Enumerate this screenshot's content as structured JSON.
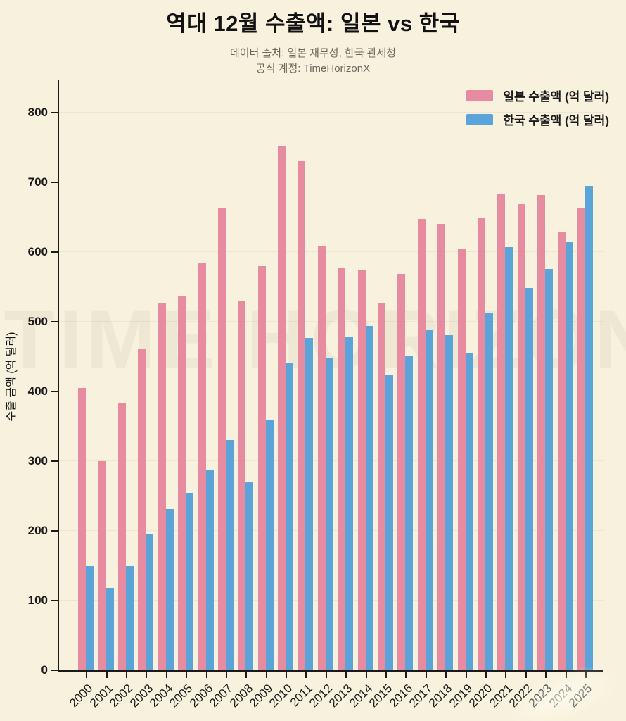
{
  "header": {
    "title": "역대 12월 수출액:  일본 vs 한국",
    "subtitle_line1": "데이터 출처: 일본 재무성, 한국 관세청",
    "subtitle_line2": "공식 계정: TimeHorizonX"
  },
  "watermark": "TIME HORIZON",
  "colors": {
    "background": "#f8f1dd",
    "japan": "#e78ba0",
    "korea": "#5ba4d9",
    "axis": "#1a1a1a",
    "grid": "#eee5cd",
    "subtitle": "#6b675c"
  },
  "chart_data": {
    "type": "bar",
    "title": "역대 12월 수출액:  일본 vs 한국",
    "xlabel": "",
    "ylabel": "수출 금액 (억 달러)",
    "ylim": [
      0,
      848
    ],
    "yticks": [
      0,
      100,
      200,
      300,
      400,
      500,
      600,
      700,
      800
    ],
    "grid": true,
    "legend_position": "upper right",
    "categories": [
      "2000",
      "2001",
      "2002",
      "2003",
      "2004",
      "2005",
      "2006",
      "2007",
      "2008",
      "2009",
      "2010",
      "2011",
      "2012",
      "2013",
      "2014",
      "2015",
      "2016",
      "2017",
      "2018",
      "2019",
      "2020",
      "2021",
      "2022",
      "2023",
      "2024",
      "2025"
    ],
    "series": [
      {
        "name": "일본 수출액 (억 달러)",
        "color": "#e78ba0",
        "values": [
          405,
          300,
          384,
          462,
          527,
          537,
          584,
          664,
          530,
          580,
          752,
          730,
          609,
          578,
          574,
          526,
          569,
          647,
          640,
          604,
          648,
          683,
          669,
          682,
          629,
          664
        ]
      },
      {
        "name": "한국 수출액 (억 달러)",
        "color": "#5ba4d9",
        "values": [
          149,
          118,
          149,
          196,
          231,
          255,
          288,
          330,
          271,
          359,
          440,
          477,
          448,
          479,
          494,
          424,
          450,
          489,
          481,
          456,
          512,
          607,
          548,
          576,
          614,
          695
        ]
      }
    ]
  }
}
